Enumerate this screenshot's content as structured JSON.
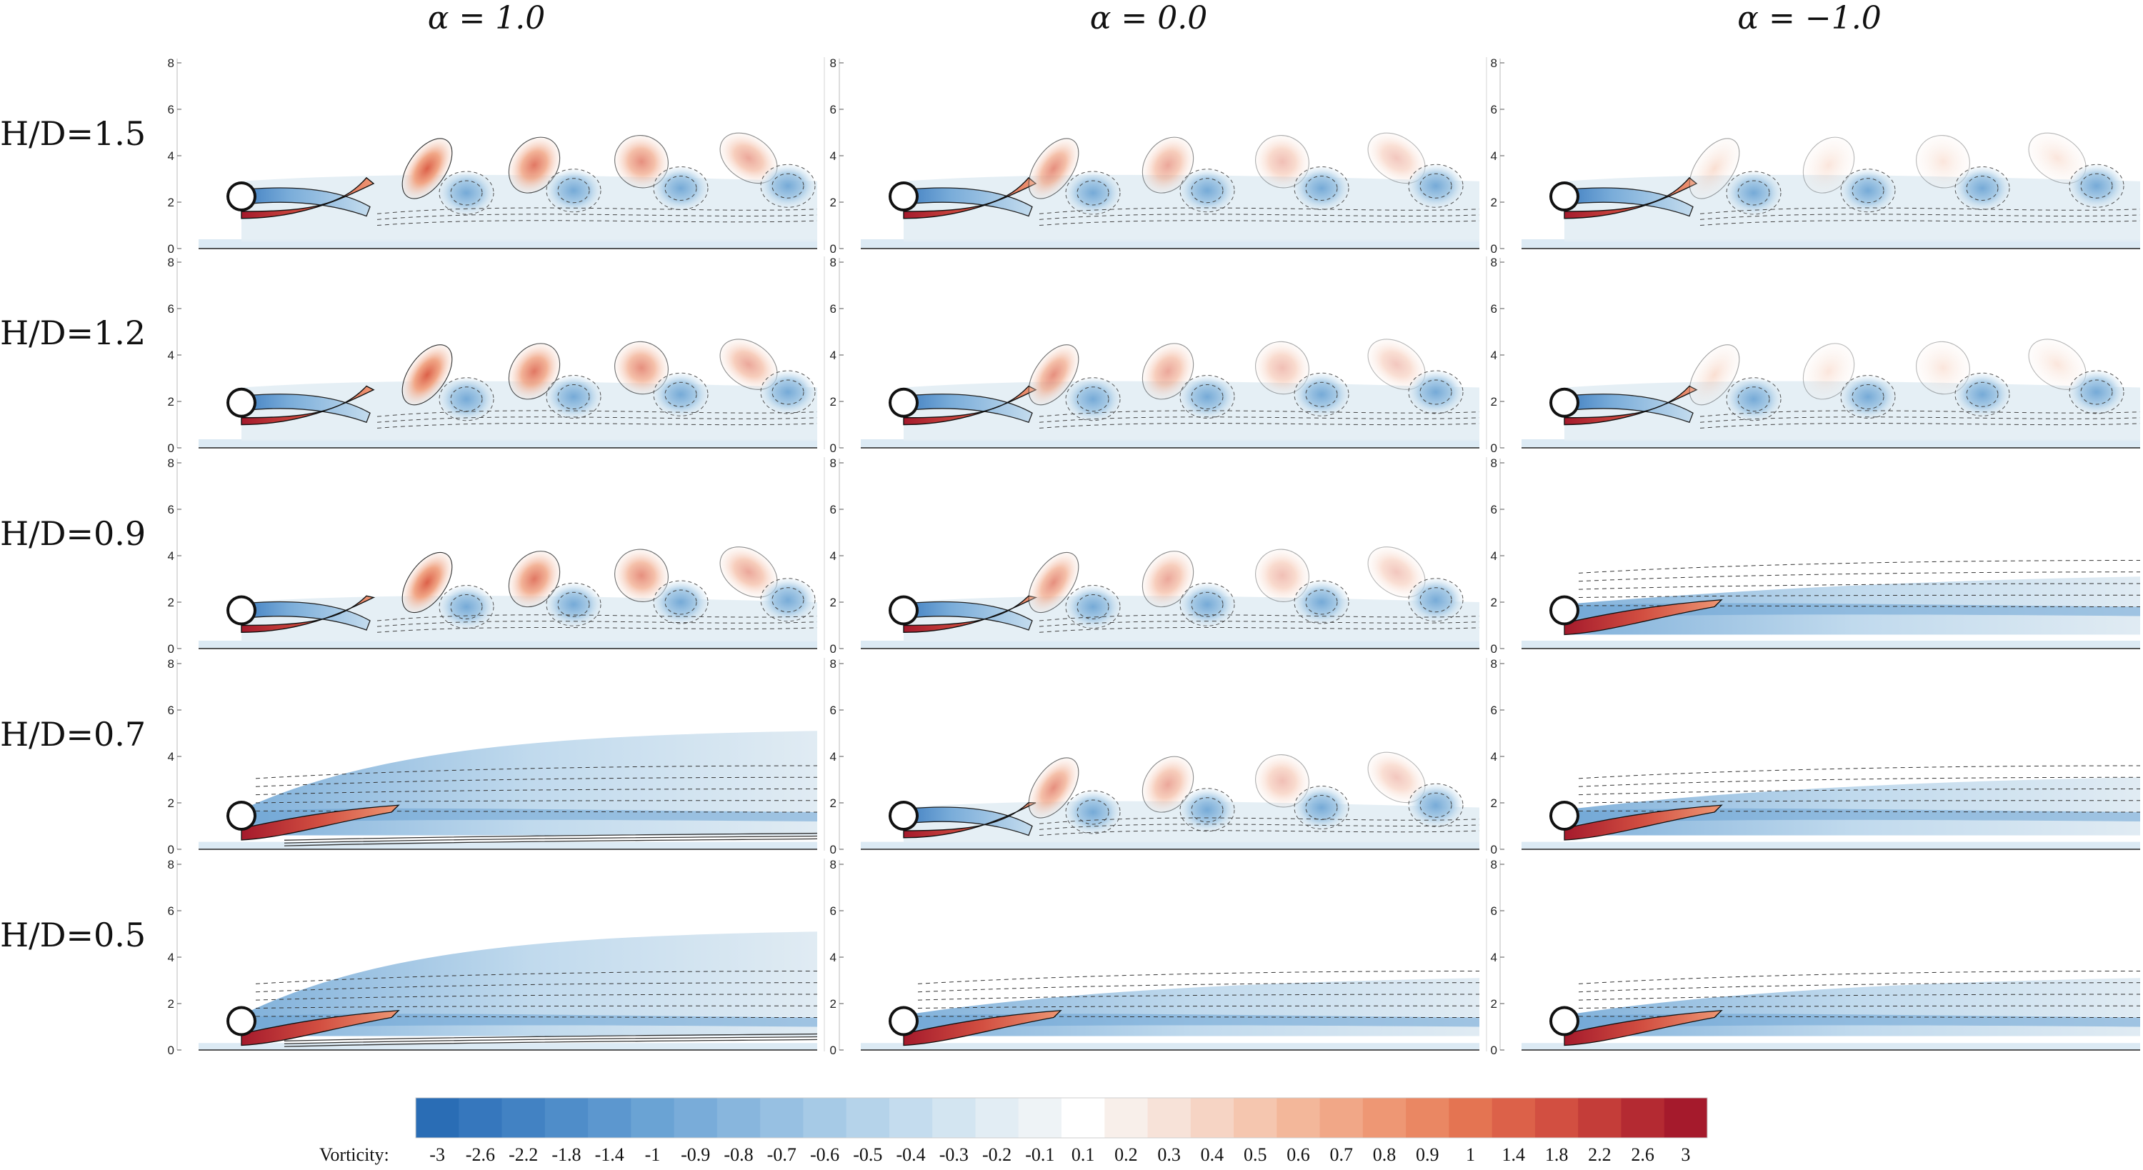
{
  "columns": [
    {
      "title": "α = 1.0",
      "alpha": 1.0
    },
    {
      "title": "α = 0.0",
      "alpha": 0.0
    },
    {
      "title": "α = −1.0",
      "alpha": -1.0
    }
  ],
  "rows": [
    {
      "label": "H/D=1.5",
      "gap_ratio": 1.5
    },
    {
      "label": "H/D=1.2",
      "gap_ratio": 1.2
    },
    {
      "label": "H/D=0.9",
      "gap_ratio": 0.9
    },
    {
      "label": "H/D=0.7",
      "gap_ratio": 0.7
    },
    {
      "label": "H/D=0.5",
      "gap_ratio": 0.5
    }
  ],
  "panel_regime": [
    [
      "shedding",
      "shedding",
      "shedding"
    ],
    [
      "shedding",
      "shedding",
      "shedding"
    ],
    [
      "shedding",
      "shedding",
      "steady"
    ],
    [
      "steady",
      "shedding",
      "steady"
    ],
    [
      "steady",
      "steady",
      "steady"
    ]
  ],
  "y_axis_ticks": [
    "0",
    "2",
    "4",
    "6",
    "8"
  ],
  "colorbar": {
    "title": "Vorticity:",
    "labels": [
      "-3",
      "-2.6",
      "-2.2",
      "-1.8",
      "-1.4",
      "-1",
      "-0.9",
      "-0.8",
      "-0.7",
      "-0.6",
      "-0.5",
      "-0.4",
      "-0.3",
      "-0.2",
      "-0.1",
      "0.1",
      "0.2",
      "0.3",
      "0.4",
      "0.5",
      "0.6",
      "0.7",
      "0.8",
      "0.9",
      "1",
      "1.4",
      "1.8",
      "2.2",
      "2.6",
      "3"
    ],
    "colors": [
      "#2a6db5",
      "#3677bd",
      "#4282c3",
      "#4f8dc9",
      "#5c97cf",
      "#6aa3d4",
      "#79acd9",
      "#88b6dd",
      "#97c0e2",
      "#a6cae6",
      "#b5d3ea",
      "#c4dcee",
      "#d3e5f1",
      "#e2edf4",
      "#eef3f6",
      "#ffffff",
      "#f8efea",
      "#f7e2d8",
      "#f6d4c4",
      "#f5c6af",
      "#f3b79a",
      "#f1a787",
      "#ee9774",
      "#ea8763",
      "#e47452",
      "#dc6149",
      "#d24f41",
      "#c43d39",
      "#b42a32",
      "#a51a2c"
    ]
  }
}
